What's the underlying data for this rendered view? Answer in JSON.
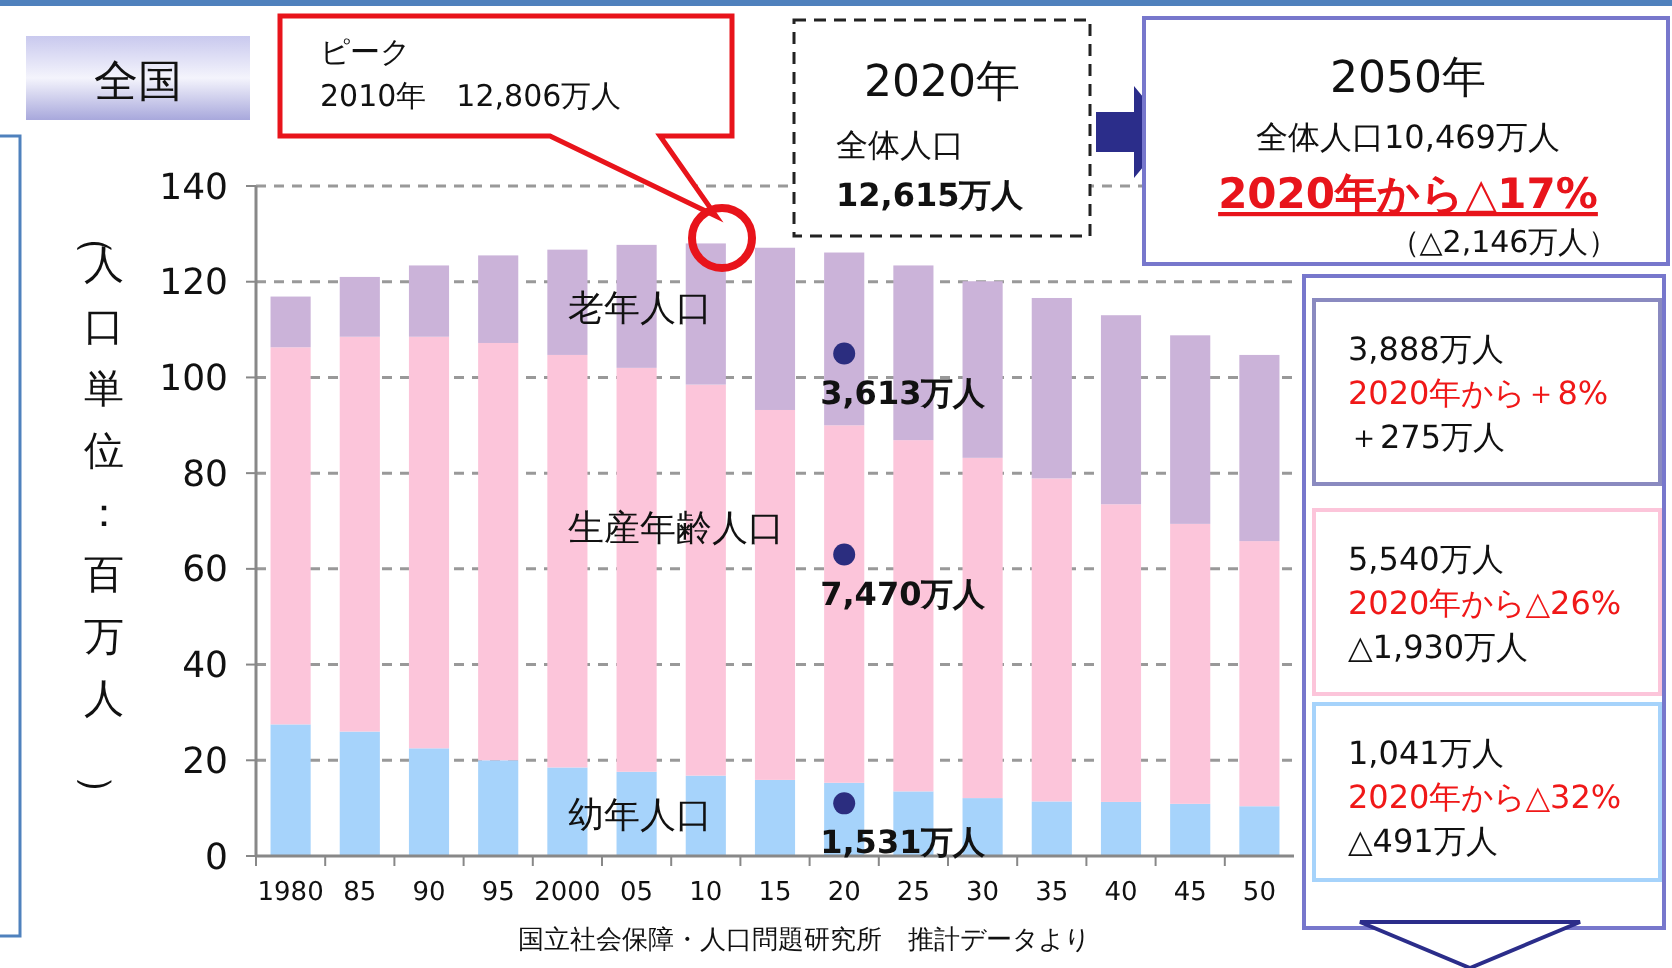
{
  "chart_data": {
    "type": "bar",
    "stacked": true,
    "title": "全国",
    "ylabel": "（人口単位：百万人）",
    "categories": [
      "1980",
      "85",
      "90",
      "95",
      "2000",
      "05",
      "10",
      "15",
      "20",
      "25",
      "30",
      "35",
      "40",
      "45",
      "50"
    ],
    "series": [
      {
        "name": "幼年人口",
        "color": "#a6d3fb",
        "values": [
          27.5,
          26.0,
          22.5,
          20.0,
          18.5,
          17.6,
          16.8,
          15.9,
          15.3,
          13.5,
          12.1,
          11.4,
          11.3,
          10.9,
          10.4
        ]
      },
      {
        "name": "生産年齢人口",
        "color": "#fcc5da",
        "values": [
          78.8,
          82.5,
          86.0,
          87.2,
          86.2,
          84.4,
          81.7,
          77.3,
          74.7,
          73.4,
          71.1,
          67.5,
          62.2,
          58.5,
          55.4
        ]
      },
      {
        "name": "老年人口",
        "color": "#cbb3d9",
        "values": [
          10.6,
          12.5,
          14.9,
          18.3,
          22.0,
          25.7,
          29.5,
          33.9,
          36.1,
          36.5,
          36.9,
          37.7,
          39.5,
          39.4,
          38.9
        ]
      }
    ],
    "ylim": [
      0,
      140
    ],
    "yticks": [
      0,
      20,
      40,
      60,
      80,
      100,
      120,
      140
    ],
    "grid": "y",
    "annotations": [
      "ピーク",
      "2010年　12,806万人",
      "2020年",
      "全体人口",
      "12,615万人",
      "2050年",
      "全体人口10,469万人",
      "2020年から△17%",
      "（△2,146万人）",
      "3,888万人",
      "2020年から＋8%",
      "＋275万人",
      "5,540万人",
      "2020年から△26%",
      "△1,930万人",
      "1,041万人",
      "2020年から△32%",
      "△491万人",
      {
        "text": "3,613万人",
        "x": "20",
        "y": 105
      },
      {
        "text": "7,470万人",
        "x": "20",
        "y": 63
      },
      {
        "text": "1,531万人",
        "x": "20",
        "y": 11
      },
      "国立社会保障・人口問題研究所　推計データより"
    ]
  }
}
